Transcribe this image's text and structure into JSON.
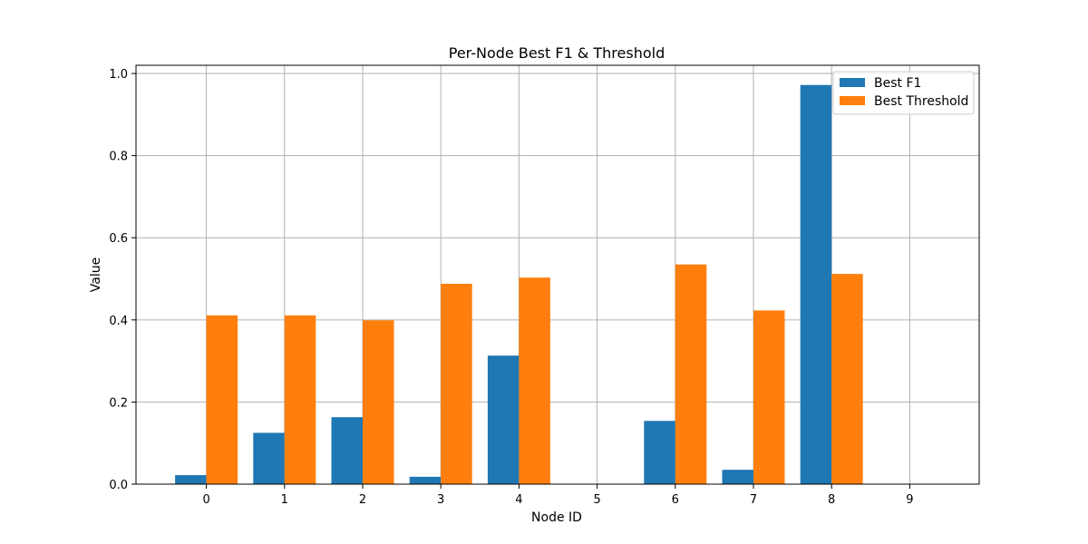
{
  "chart_data": {
    "type": "bar",
    "title": "Per-Node Best F1 & Threshold",
    "xlabel": "Node ID",
    "ylabel": "Value",
    "categories": [
      "0",
      "1",
      "2",
      "3",
      "4",
      "5",
      "6",
      "7",
      "8",
      "9"
    ],
    "series": [
      {
        "name": "Best F1",
        "color": "#1f77b4",
        "values": [
          0.022,
          0.125,
          0.163,
          0.018,
          0.313,
          0,
          0.154,
          0.035,
          0.972,
          0
        ]
      },
      {
        "name": "Best Threshold",
        "color": "#ff7f0e",
        "values": [
          0.411,
          0.411,
          0.399,
          0.488,
          0.503,
          0,
          0.535,
          0.423,
          0.512,
          0
        ]
      }
    ],
    "ylim": [
      0,
      1.02
    ],
    "yticks": [
      "0.0",
      "0.2",
      "0.4",
      "0.6",
      "0.8",
      "1.0"
    ],
    "grid": true,
    "legend": "top-right"
  }
}
